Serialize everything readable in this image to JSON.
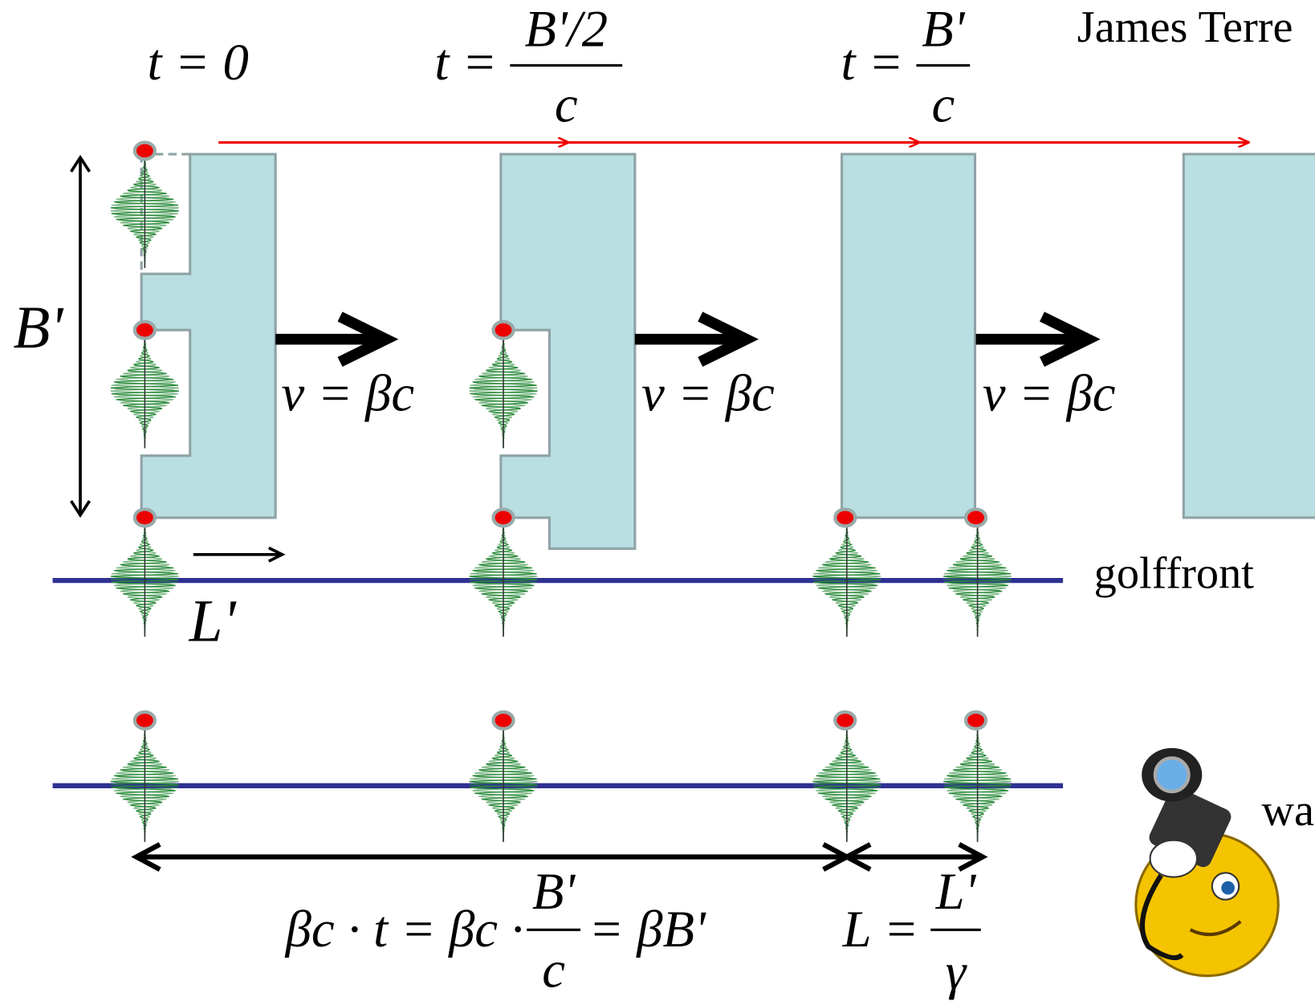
{
  "author": "James Terre",
  "time_labels": [
    {
      "lhs": "t = 0"
    },
    {
      "lhs": "t =",
      "numerator": "B'/2",
      "denominator": "c"
    },
    {
      "lhs": "t =",
      "numerator": "B'",
      "denominator": "c"
    }
  ],
  "velocity_labels": [
    "v = βc",
    "v = βc",
    "v = βc"
  ],
  "height_label": "B'",
  "length_label": "L'",
  "wavefront_label": "golffront",
  "observer_label": "wa",
  "distance_formula": {
    "lhs": "βc · t = βc ·",
    "numerator": "B'",
    "denominator": "c",
    "rhs": "= βB'"
  },
  "length_formula": {
    "lhs": "L =",
    "numerator": "L'",
    "denominator": "γ"
  }
}
